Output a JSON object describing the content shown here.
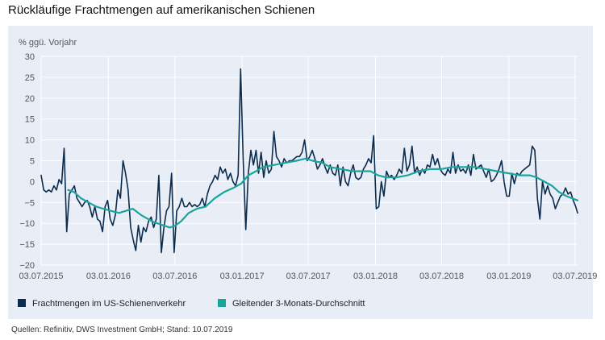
{
  "title": "Rückläufige Frachtmengen auf amerikanischen Schienen",
  "source": "Quellen: Refinitiv, DWS Investment GmbH; Stand: 10.07.2019",
  "colors": {
    "raw": "#0c2c4e",
    "avg": "#1aa59c",
    "panel": "#e8edf6",
    "grid": "#ffffff"
  },
  "chart_data": {
    "type": "line",
    "ylabel": "% ggü. Vorjahr",
    "ylim": [
      -20,
      30
    ],
    "yticks": [
      "30",
      "25",
      "20",
      "15",
      "10",
      "5",
      "0",
      "−5",
      "−10",
      "−15",
      "−20"
    ],
    "x_ticks": [
      "03.07.2015",
      "03.01.2016",
      "03.07.2016",
      "03.01.2017",
      "03.07.2017",
      "03.01.2018",
      "03.07.2018",
      "03.01.2019",
      "03.07.2019"
    ],
    "x_range": [
      "2015-07-03",
      "2019-07-10"
    ],
    "grid": true,
    "legend_position": "bottom",
    "series": [
      {
        "name": "Frachtmengen im US-Schienenverkehr",
        "color": "#0c2c4e",
        "points": [
          [
            "2015-07-03",
            1.5
          ],
          [
            "2015-07-10",
            -2
          ],
          [
            "2015-07-17",
            -2.5
          ],
          [
            "2015-07-24",
            -2
          ],
          [
            "2015-07-31",
            -2.5
          ],
          [
            "2015-08-07",
            -1
          ],
          [
            "2015-08-14",
            -2
          ],
          [
            "2015-08-21",
            0.5
          ],
          [
            "2015-08-28",
            -0.5
          ],
          [
            "2015-09-04",
            8
          ],
          [
            "2015-09-11",
            -12
          ],
          [
            "2015-09-18",
            -3
          ],
          [
            "2015-09-25",
            -2
          ],
          [
            "2015-10-02",
            -1
          ],
          [
            "2015-10-09",
            -4
          ],
          [
            "2015-10-16",
            -5
          ],
          [
            "2015-10-23",
            -6
          ],
          [
            "2015-10-30",
            -5
          ],
          [
            "2015-11-06",
            -4.5
          ],
          [
            "2015-11-13",
            -6
          ],
          [
            "2015-11-20",
            -8.5
          ],
          [
            "2015-11-27",
            -6
          ],
          [
            "2015-12-04",
            -9
          ],
          [
            "2015-12-11",
            -9.5
          ],
          [
            "2015-12-18",
            -12
          ],
          [
            "2015-12-25",
            -6
          ],
          [
            "2016-01-01",
            -4.5
          ],
          [
            "2016-01-08",
            -9
          ],
          [
            "2016-01-15",
            -10.5
          ],
          [
            "2016-01-22",
            -8
          ],
          [
            "2016-01-29",
            -2
          ],
          [
            "2016-02-05",
            -4
          ],
          [
            "2016-02-12",
            5
          ],
          [
            "2016-02-19",
            2
          ],
          [
            "2016-02-26",
            -2
          ],
          [
            "2016-03-04",
            -11
          ],
          [
            "2016-03-11",
            -14
          ],
          [
            "2016-03-18",
            -16.5
          ],
          [
            "2016-03-25",
            -10.5
          ],
          [
            "2016-04-01",
            -14.5
          ],
          [
            "2016-04-08",
            -11
          ],
          [
            "2016-04-15",
            -12
          ],
          [
            "2016-04-22",
            -9.5
          ],
          [
            "2016-04-29",
            -8.5
          ],
          [
            "2016-05-06",
            -11
          ],
          [
            "2016-05-13",
            -9
          ],
          [
            "2016-05-20",
            1.5
          ],
          [
            "2016-05-27",
            -17
          ],
          [
            "2016-06-03",
            -11
          ],
          [
            "2016-06-10",
            -7
          ],
          [
            "2016-06-17",
            -6
          ],
          [
            "2016-06-24",
            2
          ],
          [
            "2016-07-01",
            -17
          ],
          [
            "2016-07-08",
            -7
          ],
          [
            "2016-07-15",
            -6
          ],
          [
            "2016-07-22",
            -4
          ],
          [
            "2016-07-29",
            -6
          ],
          [
            "2016-08-05",
            -6
          ],
          [
            "2016-08-12",
            -5
          ],
          [
            "2016-08-19",
            -6
          ],
          [
            "2016-08-26",
            -5.5
          ],
          [
            "2016-09-02",
            -6
          ],
          [
            "2016-09-09",
            -5.5
          ],
          [
            "2016-09-16",
            -4
          ],
          [
            "2016-09-23",
            -6
          ],
          [
            "2016-09-30",
            -3
          ],
          [
            "2016-10-07",
            -1
          ],
          [
            "2016-10-14",
            0
          ],
          [
            "2016-10-21",
            1.5
          ],
          [
            "2016-10-28",
            0.5
          ],
          [
            "2016-11-04",
            3.5
          ],
          [
            "2016-11-11",
            2
          ],
          [
            "2016-11-18",
            3
          ],
          [
            "2016-11-25",
            0.5
          ],
          [
            "2016-12-02",
            2
          ],
          [
            "2016-12-09",
            0
          ],
          [
            "2016-12-16",
            -1
          ],
          [
            "2016-12-23",
            1.5
          ],
          [
            "2016-12-30",
            27
          ],
          [
            "2017-01-06",
            5
          ],
          [
            "2017-01-13",
            -11.5
          ],
          [
            "2017-01-20",
            2
          ],
          [
            "2017-01-27",
            7.5
          ],
          [
            "2017-02-03",
            4
          ],
          [
            "2017-02-10",
            7.5
          ],
          [
            "2017-02-17",
            2
          ],
          [
            "2017-02-24",
            7
          ],
          [
            "2017-03-03",
            1
          ],
          [
            "2017-03-10",
            5
          ],
          [
            "2017-03-17",
            2
          ],
          [
            "2017-03-24",
            3
          ],
          [
            "2017-03-31",
            12
          ],
          [
            "2017-04-07",
            6
          ],
          [
            "2017-04-14",
            5
          ],
          [
            "2017-04-21",
            3.5
          ],
          [
            "2017-04-28",
            5.5
          ],
          [
            "2017-05-05",
            4.5
          ],
          [
            "2017-05-12",
            5
          ],
          [
            "2017-05-19",
            5
          ],
          [
            "2017-05-26",
            5.5
          ],
          [
            "2017-06-02",
            6
          ],
          [
            "2017-06-09",
            6
          ],
          [
            "2017-06-16",
            7
          ],
          [
            "2017-06-23",
            10
          ],
          [
            "2017-06-30",
            5
          ],
          [
            "2017-07-07",
            6
          ],
          [
            "2017-07-14",
            7.5
          ],
          [
            "2017-07-21",
            5.5
          ],
          [
            "2017-07-28",
            3
          ],
          [
            "2017-08-04",
            4
          ],
          [
            "2017-08-11",
            5.5
          ],
          [
            "2017-08-18",
            3.5
          ],
          [
            "2017-08-25",
            2
          ],
          [
            "2017-09-01",
            4
          ],
          [
            "2017-09-08",
            2
          ],
          [
            "2017-09-15",
            1.5
          ],
          [
            "2017-09-22",
            4
          ],
          [
            "2017-09-29",
            -1
          ],
          [
            "2017-10-06",
            3.5
          ],
          [
            "2017-10-13",
            0
          ],
          [
            "2017-10-20",
            -1
          ],
          [
            "2017-10-27",
            2
          ],
          [
            "2017-11-03",
            4
          ],
          [
            "2017-11-10",
            1
          ],
          [
            "2017-11-17",
            0.5
          ],
          [
            "2017-11-24",
            1
          ],
          [
            "2017-12-01",
            3
          ],
          [
            "2017-12-08",
            4
          ],
          [
            "2017-12-15",
            5.5
          ],
          [
            "2017-12-22",
            4.5
          ],
          [
            "2017-12-29",
            11
          ],
          [
            "2018-01-05",
            -6.5
          ],
          [
            "2018-01-12",
            -6
          ],
          [
            "2018-01-19",
            0
          ],
          [
            "2018-01-26",
            -3.5
          ],
          [
            "2018-02-02",
            2.5
          ],
          [
            "2018-02-09",
            1
          ],
          [
            "2018-02-16",
            1.5
          ],
          [
            "2018-02-23",
            0.5
          ],
          [
            "2018-03-02",
            1.5
          ],
          [
            "2018-03-09",
            3
          ],
          [
            "2018-03-16",
            2
          ],
          [
            "2018-03-23",
            8
          ],
          [
            "2018-03-30",
            2.5
          ],
          [
            "2018-04-06",
            4
          ],
          [
            "2018-04-13",
            8.5
          ],
          [
            "2018-04-20",
            2
          ],
          [
            "2018-04-27",
            3.5
          ],
          [
            "2018-05-04",
            1.5
          ],
          [
            "2018-05-11",
            3
          ],
          [
            "2018-05-18",
            2
          ],
          [
            "2018-05-25",
            4
          ],
          [
            "2018-06-01",
            3.5
          ],
          [
            "2018-06-08",
            6.5
          ],
          [
            "2018-06-15",
            4
          ],
          [
            "2018-06-22",
            5.5
          ],
          [
            "2018-06-29",
            3
          ],
          [
            "2018-07-06",
            2
          ],
          [
            "2018-07-13",
            1.5
          ],
          [
            "2018-07-20",
            3
          ],
          [
            "2018-07-27",
            2
          ],
          [
            "2018-08-03",
            7
          ],
          [
            "2018-08-10",
            2
          ],
          [
            "2018-08-17",
            4
          ],
          [
            "2018-08-24",
            2.5
          ],
          [
            "2018-08-31",
            3
          ],
          [
            "2018-09-07",
            2
          ],
          [
            "2018-09-14",
            4
          ],
          [
            "2018-09-21",
            1.5
          ],
          [
            "2018-09-28",
            6.5
          ],
          [
            "2018-10-05",
            3
          ],
          [
            "2018-10-12",
            3.5
          ],
          [
            "2018-10-19",
            4
          ],
          [
            "2018-10-26",
            2.5
          ],
          [
            "2018-11-02",
            1
          ],
          [
            "2018-11-09",
            3
          ],
          [
            "2018-11-16",
            0
          ],
          [
            "2018-11-23",
            0.5
          ],
          [
            "2018-11-30",
            1.5
          ],
          [
            "2018-12-07",
            3
          ],
          [
            "2018-12-14",
            5
          ],
          [
            "2018-12-21",
            0
          ],
          [
            "2018-12-28",
            -3.5
          ],
          [
            "2019-01-04",
            -3.5
          ],
          [
            "2019-01-11",
            2
          ],
          [
            "2019-01-18",
            -0.5
          ],
          [
            "2019-01-25",
            2
          ],
          [
            "2019-02-01",
            1.5
          ],
          [
            "2019-02-08",
            2.5
          ],
          [
            "2019-02-15",
            3
          ],
          [
            "2019-02-22",
            3.5
          ],
          [
            "2019-03-01",
            4
          ],
          [
            "2019-03-08",
            8.5
          ],
          [
            "2019-03-15",
            7.5
          ],
          [
            "2019-03-22",
            -4
          ],
          [
            "2019-03-29",
            -9
          ],
          [
            "2019-04-05",
            0
          ],
          [
            "2019-04-12",
            -3
          ],
          [
            "2019-04-19",
            -1
          ],
          [
            "2019-04-26",
            -3
          ],
          [
            "2019-05-03",
            -4
          ],
          [
            "2019-05-10",
            -6.5
          ],
          [
            "2019-05-17",
            -5
          ],
          [
            "2019-05-24",
            -3.5
          ],
          [
            "2019-05-31",
            -3
          ],
          [
            "2019-06-07",
            -1.5
          ],
          [
            "2019-06-14",
            -3
          ],
          [
            "2019-06-21",
            -2.5
          ],
          [
            "2019-06-28",
            -4.5
          ],
          [
            "2019-07-05",
            -6
          ],
          [
            "2019-07-10",
            -7.5
          ]
        ]
      },
      {
        "name": "Gleitender 3-Monats-Durchschnitt",
        "color": "#1aa59c",
        "points": [
          [
            "2015-09-15",
            -2
          ],
          [
            "2015-10-01",
            -2.5
          ],
          [
            "2015-10-20",
            -4
          ],
          [
            "2015-11-10",
            -5
          ],
          [
            "2015-12-01",
            -6
          ],
          [
            "2015-12-20",
            -6.5
          ],
          [
            "2016-01-10",
            -7
          ],
          [
            "2016-02-01",
            -7.5
          ],
          [
            "2016-02-20",
            -7
          ],
          [
            "2016-03-10",
            -6.5
          ],
          [
            "2016-04-01",
            -8
          ],
          [
            "2016-05-01",
            -9.5
          ],
          [
            "2016-06-01",
            -10.5
          ],
          [
            "2016-06-20",
            -11
          ],
          [
            "2016-07-05",
            -10.5
          ],
          [
            "2016-07-20",
            -9.5
          ],
          [
            "2016-08-10",
            -7.5
          ],
          [
            "2016-09-01",
            -6.5
          ],
          [
            "2016-09-25",
            -6
          ],
          [
            "2016-10-20",
            -4
          ],
          [
            "2016-11-15",
            -2.5
          ],
          [
            "2016-12-10",
            -1.5
          ],
          [
            "2016-12-31",
            -0.5
          ],
          [
            "2017-01-10",
            0.5
          ],
          [
            "2017-01-20",
            1.5
          ],
          [
            "2017-02-10",
            2.5
          ],
          [
            "2017-03-01",
            3.5
          ],
          [
            "2017-04-01",
            4
          ],
          [
            "2017-05-01",
            4.5
          ],
          [
            "2017-06-01",
            5
          ],
          [
            "2017-06-25",
            5.5
          ],
          [
            "2017-07-15",
            5
          ],
          [
            "2017-08-10",
            4.5
          ],
          [
            "2017-09-01",
            3.5
          ],
          [
            "2017-10-01",
            3
          ],
          [
            "2017-11-01",
            2.5
          ],
          [
            "2017-12-01",
            2.5
          ],
          [
            "2017-12-20",
            2.5
          ],
          [
            "2018-01-10",
            1.5
          ],
          [
            "2018-02-01",
            1
          ],
          [
            "2018-03-01",
            1
          ],
          [
            "2018-04-01",
            1.5
          ],
          [
            "2018-05-01",
            2.5
          ],
          [
            "2018-06-01",
            3
          ],
          [
            "2018-07-01",
            3
          ],
          [
            "2018-08-01",
            3.5
          ],
          [
            "2018-09-01",
            3.5
          ],
          [
            "2018-10-01",
            3.5
          ],
          [
            "2018-11-01",
            3
          ],
          [
            "2018-12-01",
            2.5
          ],
          [
            "2019-01-01",
            2
          ],
          [
            "2019-02-01",
            1.5
          ],
          [
            "2019-03-01",
            1.5
          ],
          [
            "2019-03-20",
            1
          ],
          [
            "2019-04-10",
            0
          ],
          [
            "2019-05-01",
            -1
          ],
          [
            "2019-05-20",
            -2.5
          ],
          [
            "2019-06-10",
            -3.5
          ],
          [
            "2019-06-25",
            -4
          ],
          [
            "2019-07-10",
            -4.5
          ]
        ]
      }
    ]
  }
}
